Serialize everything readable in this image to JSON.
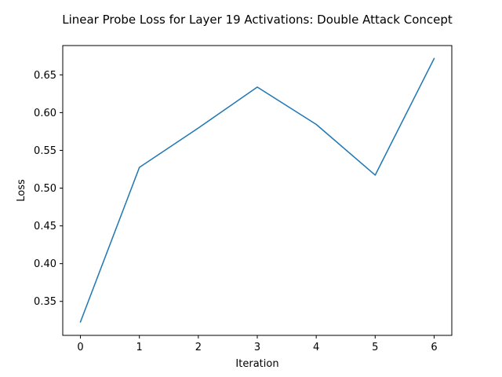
{
  "chart_data": {
    "type": "line",
    "title": "Linear Probe Loss for Layer 19 Activations: Double Attack Concept",
    "xlabel": "Iteration",
    "ylabel": "Loss",
    "x": [
      0,
      1,
      2,
      3,
      4,
      5,
      6
    ],
    "series": [
      {
        "values": [
          0.3228,
          0.5274,
          0.5796,
          0.6338,
          0.5844,
          0.5172,
          0.6716
        ],
        "color": "#1f77b4"
      }
    ],
    "xlim": [
      -0.3,
      6.3
    ],
    "ylim": [
      0.305,
      0.6888
    ],
    "xticks": [
      0,
      1,
      2,
      3,
      4,
      5,
      6
    ],
    "xtick_labels": [
      "0",
      "1",
      "2",
      "3",
      "4",
      "5",
      "6"
    ],
    "yticks": [
      0.35,
      0.4,
      0.45,
      0.5,
      0.55,
      0.6,
      0.65
    ],
    "ytick_labels": [
      "0.35",
      "0.40",
      "0.45",
      "0.50",
      "0.55",
      "0.60",
      "0.65"
    ],
    "grid": false,
    "legend": false
  }
}
